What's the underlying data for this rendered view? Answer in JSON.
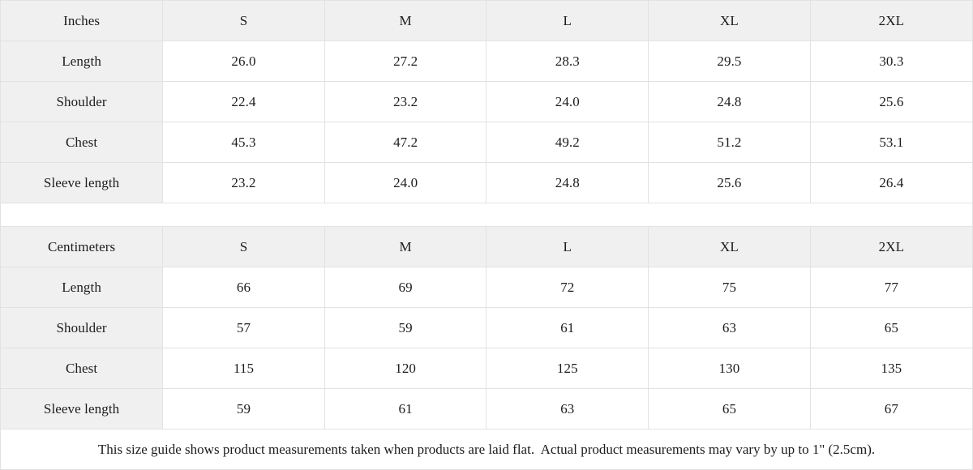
{
  "size_guide": {
    "colors": {
      "header_bg": "#f0f0f0",
      "border": "#e2e2e2",
      "text": "#1c1c1c"
    },
    "tables": [
      {
        "unit_label": "Inches",
        "sizes": [
          "S",
          "M",
          "L",
          "XL",
          "2XL"
        ],
        "rows": [
          {
            "label": "Length",
            "values": [
              "26.0",
              "27.2",
              "28.3",
              "29.5",
              "30.3"
            ]
          },
          {
            "label": "Shoulder",
            "values": [
              "22.4",
              "23.2",
              "24.0",
              "24.8",
              "25.6"
            ]
          },
          {
            "label": "Chest",
            "values": [
              "45.3",
              "47.2",
              "49.2",
              "51.2",
              "53.1"
            ]
          },
          {
            "label": "Sleeve length",
            "values": [
              "23.2",
              "24.0",
              "24.8",
              "25.6",
              "26.4"
            ]
          }
        ]
      },
      {
        "unit_label": "Centimeters",
        "sizes": [
          "S",
          "M",
          "L",
          "XL",
          "2XL"
        ],
        "rows": [
          {
            "label": "Length",
            "values": [
              "66",
              "69",
              "72",
              "75",
              "77"
            ]
          },
          {
            "label": "Shoulder",
            "values": [
              "57",
              "59",
              "61",
              "63",
              "65"
            ]
          },
          {
            "label": "Chest",
            "values": [
              "115",
              "120",
              "125",
              "130",
              "135"
            ]
          },
          {
            "label": "Sleeve length",
            "values": [
              "59",
              "61",
              "63",
              "65",
              "67"
            ]
          }
        ]
      }
    ],
    "footnote": "This size guide shows product measurements taken when products are laid flat.  Actual product measurements may vary by up to 1\" (2.5cm)."
  }
}
